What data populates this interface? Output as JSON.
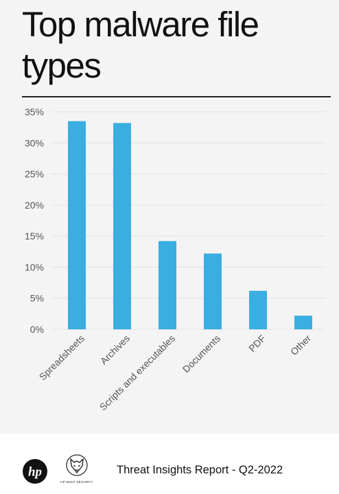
{
  "title": "Top malware file types",
  "chart_data": {
    "type": "bar",
    "title": "Top malware file types",
    "categories": [
      "Spreadsheets",
      "Archives",
      "Scripts and executables",
      "Documents",
      "PDF",
      "Other"
    ],
    "values": [
      33.5,
      33.2,
      14.2,
      12.2,
      6.2,
      2.2
    ],
    "ylim": [
      0,
      35
    ],
    "yticks": [
      "0%",
      "5%",
      "10%",
      "15%",
      "20%",
      "25%",
      "30%",
      "35%"
    ],
    "ytick_values": [
      0,
      5,
      10,
      15,
      20,
      25,
      30,
      35
    ],
    "xlabel": "",
    "ylabel": "",
    "grid": true,
    "bar_color": "#3aaee0",
    "grid_color": "#e2e2e2",
    "tick_color": "#555555"
  },
  "footer": {
    "hp_logo_text": "hp",
    "wolf_logo_text": "HP WOLF SECURITY",
    "report_label": "Threat Insights Report - Q2-2022"
  }
}
